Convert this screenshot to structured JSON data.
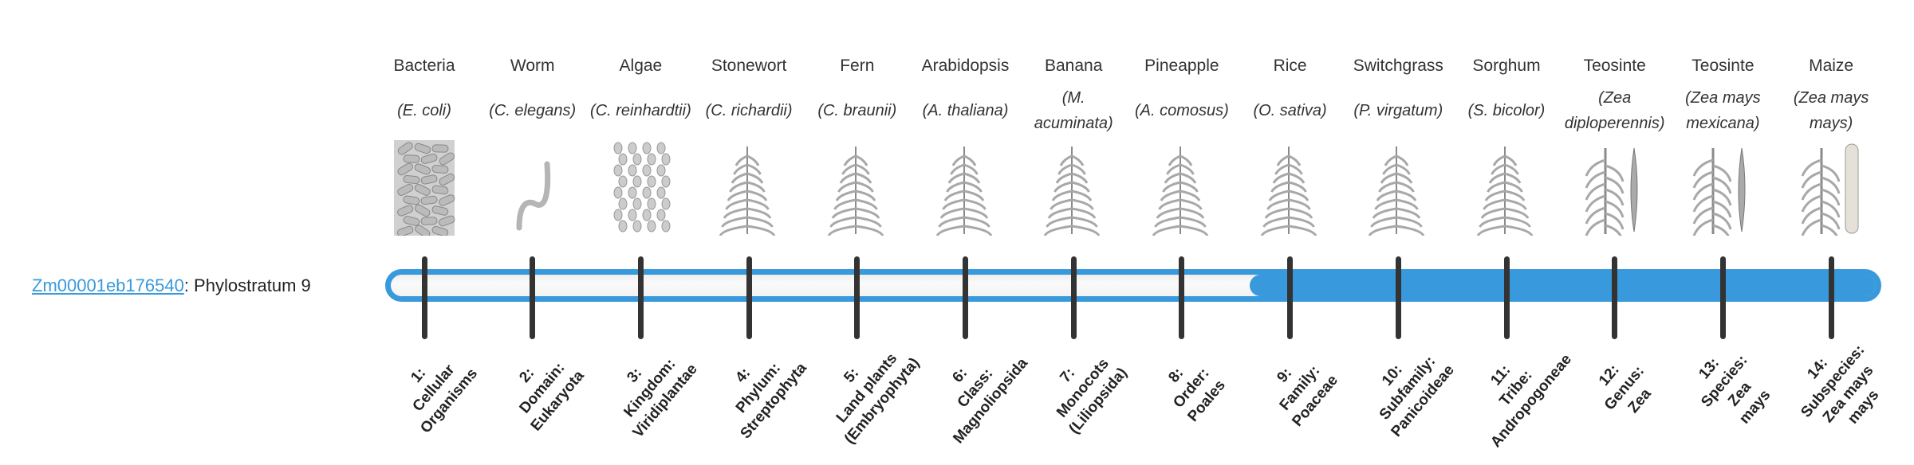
{
  "gene": {
    "id": "Zm00001eb176540",
    "suffix": ": Phylostratum 9",
    "phylostratum": 9
  },
  "colors": {
    "accent": "#3899dc",
    "tick": "#333333",
    "track": "#f5f5f5"
  },
  "taxa": [
    {
      "common": "Bacteria",
      "sci": "(E. coli)",
      "image": "bacteria-illustration",
      "rank_lines": [
        "1:",
        "Cellular",
        "Organisms"
      ]
    },
    {
      "common": "Worm",
      "sci": "(C. elegans)",
      "image": "worm-illustration",
      "rank_lines": [
        "2:",
        "Domain:",
        "Eukaryota"
      ]
    },
    {
      "common": "Algae",
      "sci": "(C. reinhardtii)",
      "image": "algae-illustration",
      "rank_lines": [
        "3:",
        "Kingdom:",
        "Viridiplantae"
      ]
    },
    {
      "common": "Stonewort",
      "sci": "(C. richardii)",
      "image": "stonewort-illustration",
      "rank_lines": [
        "4:",
        "Phylum:",
        "Streptophyta"
      ]
    },
    {
      "common": "Fern",
      "sci": "(C. braunii)",
      "image": "fern-illustration",
      "rank_lines": [
        "5:",
        "Land plants",
        "(Embryophyta)"
      ]
    },
    {
      "common": "Arabidopsis",
      "sci": "(A. thaliana)",
      "image": "arabidopsis-illustration",
      "rank_lines": [
        "6:",
        "Class:",
        "Magnoliopsida"
      ]
    },
    {
      "common": "Banana",
      "sci": "(M. acuminata)",
      "image": "banana-illustration",
      "rank_lines": [
        "7:",
        "Monocots",
        "(Liliopsida)"
      ]
    },
    {
      "common": "Pineapple",
      "sci": "(A. comosus)",
      "image": "pineapple-illustration",
      "rank_lines": [
        "8:",
        "Order:",
        "Poales"
      ]
    },
    {
      "common": "Rice",
      "sci": "(O. sativa)",
      "image": "rice-illustration",
      "rank_lines": [
        "9:",
        "Family:",
        "Poaceae"
      ]
    },
    {
      "common": "Switchgrass",
      "sci": "(P. virgatum)",
      "image": "switchgrass-illustration",
      "rank_lines": [
        "10:",
        "Subfamily:",
        "Panicoideae"
      ]
    },
    {
      "common": "Sorghum",
      "sci": "(S. bicolor)",
      "image": "sorghum-illustration",
      "rank_lines": [
        "11:",
        "Tribe:",
        "Andropogoneae"
      ]
    },
    {
      "common": "Teosinte",
      "sci": "(Zea diploperennis)",
      "image": "teosinte-illustration",
      "rank_lines": [
        "12:",
        "Genus:",
        "Zea"
      ]
    },
    {
      "common": "Teosinte",
      "sci": "(Zea mays mexicana)",
      "image": "teosinte-illustration",
      "rank_lines": [
        "13:",
        "Species:",
        "Zea",
        "mays"
      ]
    },
    {
      "common": "Maize",
      "sci": "(Zea mays mays)",
      "image": "maize-illustration",
      "rank_lines": [
        "14:",
        "Subspecies:",
        "Zea mays",
        "mays"
      ]
    }
  ]
}
